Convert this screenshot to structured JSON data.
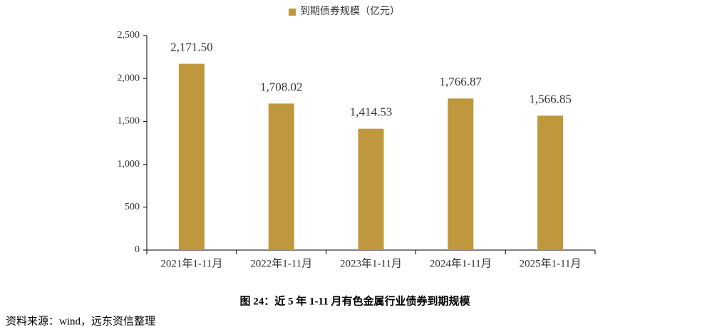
{
  "chart_data": {
    "type": "bar",
    "categories": [
      "2021年1-11月",
      "2022年1-11月",
      "2023年1-11月",
      "2024年1-11月",
      "2025年1-11月"
    ],
    "series": [
      {
        "name": "到期债券规模（亿元）",
        "color": "#bf983e",
        "values": [
          2171.5,
          1708.02,
          1414.53,
          1766.87,
          1566.85
        ],
        "value_labels": [
          "2,171.50",
          "1,708.02",
          "1,414.53",
          "1,766.87",
          "1,566.85"
        ]
      }
    ],
    "ylim": [
      0,
      2500
    ],
    "yticks": [
      0,
      500,
      {
        "value": 1000,
        "label": "1,000"
      },
      {
        "value": 1500,
        "label": "1,500"
      },
      {
        "value": 2000,
        "label": "2,000"
      },
      {
        "value": 2500,
        "label": "2,500"
      }
    ],
    "legend": "top",
    "caption": "图 24：近 5 年 1-11 月有色金属行业债券到期规模",
    "source": "资料来源：wind，远东资信整理"
  }
}
